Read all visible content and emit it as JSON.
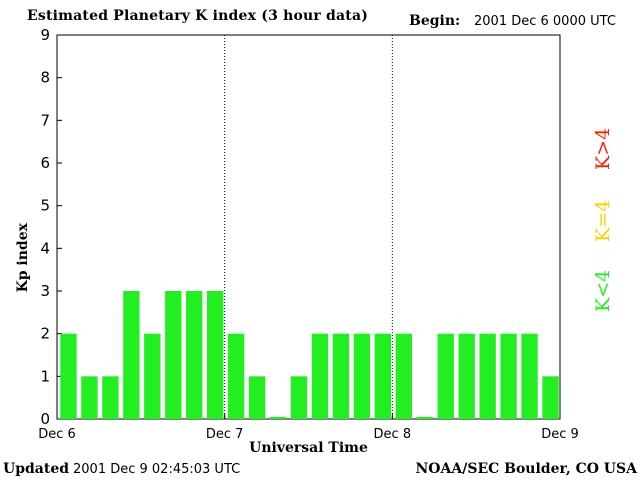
{
  "header": {
    "title": "Estimated Planetary K index (3 hour data)",
    "begin_label": "Begin:",
    "begin_value": "2001 Dec 6 0000 UTC"
  },
  "footer": {
    "updated_label": "Updated",
    "updated_value": "2001 Dec  9 02:45:03 UTC",
    "credit": "NOAA/SEC Boulder, CO USA"
  },
  "legend": [
    {
      "label": "K>4",
      "color": "#ff2000"
    },
    {
      "label": "K=4",
      "color": "#ffd000"
    },
    {
      "label": "K<4",
      "color": "#22ee22"
    }
  ],
  "chart_data": {
    "type": "bar",
    "title": "Estimated Planetary K index (3 hour data)",
    "xlabel": "Universal Time",
    "ylabel": "Kp index",
    "ylim": [
      0,
      9
    ],
    "yticks": [
      0,
      1,
      2,
      3,
      4,
      5,
      6,
      7,
      8,
      9
    ],
    "xtick_labels": [
      "Dec 6",
      "Dec 7",
      "Dec 8",
      "Dec 9"
    ],
    "bar_color": "#22ee22",
    "day_separators": "dotted",
    "values": [
      2,
      1,
      1,
      3,
      2,
      3,
      3,
      3,
      2,
      1,
      0.05,
      1,
      2,
      2,
      2,
      2,
      2,
      0.05,
      2,
      2,
      2,
      2,
      2,
      1
    ]
  }
}
